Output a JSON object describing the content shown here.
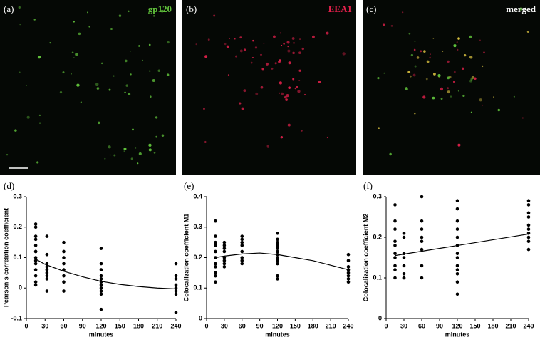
{
  "image_panels": [
    {
      "label": "(a)",
      "channel": "gp120",
      "color": "#5fbf3a"
    },
    {
      "label": "(b)",
      "channel": "EEA1",
      "color": "#e0204a"
    },
    {
      "label": "(c)",
      "channel": "merged",
      "color": "#ffffff"
    }
  ],
  "chart_data": [
    {
      "type": "scatter",
      "panel_label": "(d)",
      "x_label": "minutes",
      "y_label": "Pearson's correlation coefficient",
      "xlim": [
        0,
        240
      ],
      "xticks": [
        0,
        30,
        60,
        90,
        120,
        150,
        180,
        210,
        240
      ],
      "ylim": [
        -0.1,
        0.3
      ],
      "yticks": [
        -0.1,
        0,
        0.1,
        0.2,
        0.3
      ],
      "color": "#000000",
      "points": {
        "x": [
          15,
          15,
          15,
          15,
          15,
          15,
          15,
          15,
          15,
          15,
          15,
          15,
          15,
          15,
          33,
          33,
          33,
          33,
          33,
          33,
          33,
          33,
          33,
          60,
          60,
          60,
          60,
          60,
          60,
          60,
          60,
          120,
          120,
          120,
          120,
          120,
          120,
          120,
          120,
          120,
          120,
          120,
          240,
          240,
          240,
          240,
          240,
          240,
          240,
          240
        ],
        "values": [
          0.21,
          0.2,
          0.17,
          0.16,
          0.14,
          0.12,
          0.12,
          0.1,
          0.09,
          0.08,
          0.06,
          0.04,
          0.02,
          0.01,
          0.17,
          0.11,
          0.08,
          0.07,
          0.06,
          0.05,
          0.04,
          0.03,
          -0.01,
          0.15,
          0.12,
          0.1,
          0.08,
          0.06,
          0.04,
          0.02,
          -0.01,
          0.13,
          0.08,
          0.06,
          0.04,
          0.03,
          0.02,
          0.01,
          0,
          -0.01,
          -0.02,
          -0.07,
          0.08,
          0.04,
          0.03,
          0.01,
          0,
          -0.01,
          -0.02,
          -0.08
        ]
      },
      "fit": {
        "x": [
          15,
          30,
          60,
          90,
          120,
          150,
          180,
          210,
          240
        ],
        "values": [
          0.095,
          0.078,
          0.055,
          0.037,
          0.022,
          0.012,
          0.005,
          0.0,
          -0.003
        ]
      }
    },
    {
      "type": "scatter",
      "panel_label": "(e)",
      "x_label": "minutes",
      "y_label": "Colocalization coefficient M1",
      "xlim": [
        0,
        240
      ],
      "xticks": [
        0,
        30,
        60,
        90,
        120,
        150,
        180,
        210,
        240
      ],
      "ylim": [
        0,
        0.4
      ],
      "yticks": [
        0,
        0.1,
        0.2,
        0.3,
        0.4
      ],
      "color": "#000000",
      "points": {
        "x": [
          15,
          15,
          15,
          15,
          15,
          15,
          15,
          15,
          15,
          15,
          15,
          30,
          30,
          30,
          30,
          30,
          30,
          30,
          30,
          60,
          60,
          60,
          60,
          60,
          60,
          60,
          60,
          120,
          120,
          120,
          120,
          120,
          120,
          120,
          120,
          120,
          120,
          120,
          120,
          240,
          240,
          240,
          240,
          240,
          240,
          240,
          240
        ],
        "values": [
          0.32,
          0.27,
          0.25,
          0.24,
          0.22,
          0.2,
          0.18,
          0.17,
          0.15,
          0.14,
          0.12,
          0.25,
          0.24,
          0.23,
          0.22,
          0.2,
          0.19,
          0.18,
          0.17,
          0.27,
          0.26,
          0.25,
          0.24,
          0.22,
          0.2,
          0.19,
          0.18,
          0.28,
          0.26,
          0.25,
          0.24,
          0.23,
          0.22,
          0.21,
          0.2,
          0.19,
          0.18,
          0.14,
          0.13,
          0.21,
          0.19,
          0.17,
          0.16,
          0.15,
          0.14,
          0.13,
          0.12
        ]
      },
      "fit": {
        "x": [
          15,
          30,
          60,
          90,
          120,
          150,
          180,
          210,
          240
        ],
        "values": [
          0.2,
          0.205,
          0.212,
          0.215,
          0.21,
          0.2,
          0.19,
          0.175,
          0.16
        ]
      }
    },
    {
      "type": "scatter",
      "panel_label": "(f)",
      "x_label": "minutes",
      "y_label": "Colocalization coefficient M2",
      "xlim": [
        0,
        240
      ],
      "xticks": [
        0,
        30,
        60,
        90,
        120,
        150,
        180,
        210,
        240
      ],
      "ylim": [
        0,
        0.3
      ],
      "yticks": [
        0,
        0.1,
        0.2,
        0.3
      ],
      "color": "#000000",
      "points": {
        "x": [
          15,
          15,
          15,
          15,
          15,
          15,
          15,
          15,
          15,
          15,
          30,
          30,
          30,
          30,
          30,
          30,
          30,
          30,
          60,
          60,
          60,
          60,
          60,
          60,
          60,
          60,
          120,
          120,
          120,
          120,
          120,
          120,
          120,
          120,
          120,
          120,
          120,
          120,
          120,
          240,
          240,
          240,
          240,
          240,
          240,
          240,
          240,
          240,
          240
        ],
        "values": [
          0.28,
          0.24,
          0.22,
          0.19,
          0.18,
          0.16,
          0.15,
          0.13,
          0.12,
          0.1,
          0.21,
          0.2,
          0.16,
          0.15,
          0.13,
          0.11,
          0.1,
          0.1,
          0.3,
          0.24,
          0.22,
          0.2,
          0.19,
          0.17,
          0.13,
          0.1,
          0.29,
          0.27,
          0.24,
          0.22,
          0.2,
          0.18,
          0.16,
          0.15,
          0.13,
          0.12,
          0.11,
          0.09,
          0.06,
          0.29,
          0.28,
          0.26,
          0.25,
          0.23,
          0.22,
          0.21,
          0.2,
          0.19,
          0.17
        ]
      },
      "fit": {
        "x": [
          15,
          240
        ],
        "values": [
          0.155,
          0.208
        ]
      }
    }
  ]
}
